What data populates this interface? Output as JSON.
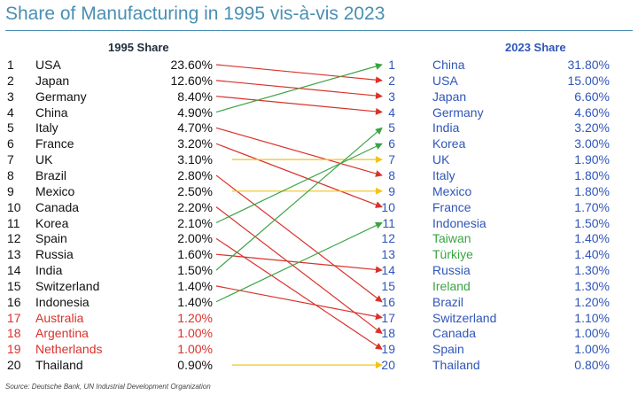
{
  "chart_data": {
    "type": "table",
    "title": "Share of Manufacturing in 1995 vis-à-vis 2023",
    "left_header": "1995 Share",
    "right_header": "2023 Share",
    "source": "Source: Deutsche Bank, UN Industrial Development Organization",
    "rank_colors": {
      "up": "#3aa444",
      "down": "#d9322b",
      "same": "#f2c419"
    },
    "left_rows": [
      {
        "rank": "1",
        "country": "USA",
        "share": "23.60%",
        "rank2023": 2
      },
      {
        "rank": "2",
        "country": "Japan",
        "share": "12.60%",
        "rank2023": 3
      },
      {
        "rank": "3",
        "country": "Germany",
        "share": "8.40%",
        "rank2023": 4
      },
      {
        "rank": "4",
        "country": "China",
        "share": "4.90%",
        "rank2023": 1
      },
      {
        "rank": "5",
        "country": "Italy",
        "share": "4.70%",
        "rank2023": 8
      },
      {
        "rank": "6",
        "country": "France",
        "share": "3.20%",
        "rank2023": 10
      },
      {
        "rank": "7",
        "country": "UK",
        "share": "3.10%",
        "rank2023": 7
      },
      {
        "rank": "8",
        "country": "Brazil",
        "share": "2.80%",
        "rank2023": 16
      },
      {
        "rank": "9",
        "country": "Mexico",
        "share": "2.50%",
        "rank2023": 9
      },
      {
        "rank": "10",
        "country": "Canada",
        "share": "2.20%",
        "rank2023": 18
      },
      {
        "rank": "11",
        "country": "Korea",
        "share": "2.10%",
        "rank2023": 6
      },
      {
        "rank": "12",
        "country": "Spain",
        "share": "2.00%",
        "rank2023": 19
      },
      {
        "rank": "13",
        "country": "Russia",
        "share": "1.60%",
        "rank2023": 14
      },
      {
        "rank": "14",
        "country": "India",
        "share": "1.50%",
        "rank2023": 5
      },
      {
        "rank": "15",
        "country": "Switzerland",
        "share": "1.40%",
        "rank2023": 17
      },
      {
        "rank": "16",
        "country": "Indonesia",
        "share": "1.40%",
        "rank2023": 11
      },
      {
        "rank": "17",
        "country": "Australia",
        "share": "1.20%",
        "rank2023": null,
        "color": "#d9322b"
      },
      {
        "rank": "18",
        "country": "Argentina",
        "share": "1.00%",
        "rank2023": null,
        "color": "#d9322b"
      },
      {
        "rank": "19",
        "country": "Netherlands",
        "share": "1.00%",
        "rank2023": null,
        "color": "#d9322b"
      },
      {
        "rank": "20",
        "country": "Thailand",
        "share": "0.90%",
        "rank2023": 20
      }
    ],
    "right_rows": [
      {
        "rank": "1",
        "country": "China",
        "share": "31.80%"
      },
      {
        "rank": "2",
        "country": "USA",
        "share": "15.00%"
      },
      {
        "rank": "3",
        "country": "Japan",
        "share": "6.60%"
      },
      {
        "rank": "4",
        "country": "Germany",
        "share": "4.60%"
      },
      {
        "rank": "5",
        "country": "India",
        "share": "3.20%"
      },
      {
        "rank": "6",
        "country": "Korea",
        "share": "3.00%"
      },
      {
        "rank": "7",
        "country": "UK",
        "share": "1.90%"
      },
      {
        "rank": "8",
        "country": "Italy",
        "share": "1.80%"
      },
      {
        "rank": "9",
        "country": "Mexico",
        "share": "1.80%"
      },
      {
        "rank": "10",
        "country": "France",
        "share": "1.70%"
      },
      {
        "rank": "11",
        "country": "Indonesia",
        "share": "1.50%"
      },
      {
        "rank": "12",
        "country": "Taiwan",
        "share": "1.40%",
        "color": "#3aa444"
      },
      {
        "rank": "13",
        "country": "Türkiye",
        "share": "1.40%",
        "color": "#3aa444"
      },
      {
        "rank": "14",
        "country": "Russia",
        "share": "1.30%"
      },
      {
        "rank": "15",
        "country": "Ireland",
        "share": "1.30%",
        "color": "#3aa444"
      },
      {
        "rank": "16",
        "country": "Brazil",
        "share": "1.20%"
      },
      {
        "rank": "17",
        "country": "Switzerland",
        "share": "1.10%"
      },
      {
        "rank": "18",
        "country": "Canada",
        "share": "1.00%"
      },
      {
        "rank": "19",
        "country": "Spain",
        "share": "1.00%"
      },
      {
        "rank": "20",
        "country": "Thailand",
        "share": "0.80%"
      }
    ]
  }
}
